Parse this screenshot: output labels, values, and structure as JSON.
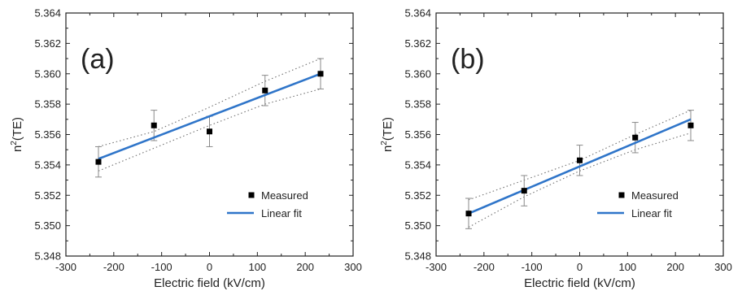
{
  "colors": {
    "axis": "#222222",
    "marker": "#000000",
    "fit": "#2f75c9",
    "confidence": "#707070",
    "errorbar": "#8a8a8a",
    "background": "#ffffff"
  },
  "chart_data": [
    {
      "type": "scatter",
      "panel_label": "(a)",
      "xlabel": "Electric field (kV/cm)",
      "ylabel": "n2(TE)",
      "ylabel_base": "n",
      "ylabel_sup": "2",
      "ylabel_rest": "(TE)",
      "xlim": [
        -300,
        300
      ],
      "ylim": [
        5.348,
        5.364
      ],
      "x_ticks": [
        -300,
        -200,
        -100,
        0,
        100,
        200,
        300
      ],
      "x_tick_labels": [
        "-300",
        "-200",
        "-100",
        "0",
        "100",
        "200",
        "300"
      ],
      "y_ticks": [
        5.348,
        5.35,
        5.352,
        5.354,
        5.356,
        5.358,
        5.36,
        5.362,
        5.364
      ],
      "y_tick_labels": [
        "5.348",
        "5.350",
        "5.352",
        "5.354",
        "5.356",
        "5.358",
        "5.360",
        "5.362",
        "5.364"
      ],
      "grid": false,
      "legend_position": "bottom-right",
      "series": [
        {
          "name": "Measured",
          "kind": "points",
          "x": [
            -232,
            -116,
            0,
            116,
            232
          ],
          "y": [
            5.3542,
            5.3566,
            5.3562,
            5.3589,
            5.36
          ],
          "yerr": [
            0.001,
            0.001,
            0.001,
            0.001,
            0.001
          ]
        },
        {
          "name": "Linear fit",
          "kind": "line",
          "x": [
            -232,
            232
          ],
          "y": [
            5.3544,
            5.36
          ]
        },
        {
          "kind": "confidence-upper",
          "x": [
            -232,
            -116,
            0,
            116,
            232
          ],
          "y": [
            5.3552,
            5.3562,
            5.3578,
            5.3595,
            5.361
          ]
        },
        {
          "kind": "confidence-lower",
          "x": [
            -232,
            -116,
            0,
            116,
            232
          ],
          "y": [
            5.3536,
            5.3551,
            5.3566,
            5.358,
            5.359
          ]
        }
      ]
    },
    {
      "type": "scatter",
      "panel_label": "(b)",
      "xlabel": "Electric field (kV/cm)",
      "ylabel": "n2(TE)",
      "ylabel_base": "n",
      "ylabel_sup": "2",
      "ylabel_rest": "(TE)",
      "xlim": [
        -300,
        300
      ],
      "ylim": [
        5.348,
        5.364
      ],
      "x_ticks": [
        -300,
        -200,
        -100,
        0,
        100,
        200,
        300
      ],
      "x_tick_labels": [
        "-300",
        "-200",
        "-100",
        "0",
        "100",
        "200",
        "300"
      ],
      "y_ticks": [
        5.348,
        5.35,
        5.352,
        5.354,
        5.356,
        5.358,
        5.36,
        5.362,
        5.364
      ],
      "y_tick_labels": [
        "5.348",
        "5.350",
        "5.352",
        "5.354",
        "5.356",
        "5.358",
        "5.360",
        "5.362",
        "5.364"
      ],
      "grid": false,
      "legend_position": "bottom-right",
      "series": [
        {
          "name": "Measured",
          "kind": "points",
          "x": [
            -232,
            -116,
            0,
            116,
            232
          ],
          "y": [
            5.3508,
            5.3523,
            5.3543,
            5.3558,
            5.3566
          ],
          "yerr": [
            0.001,
            0.001,
            0.001,
            0.001,
            0.001
          ]
        },
        {
          "name": "Linear fit",
          "kind": "line",
          "x": [
            -232,
            232
          ],
          "y": [
            5.3508,
            5.357
          ]
        },
        {
          "kind": "confidence-upper",
          "x": [
            -232,
            -116,
            0,
            116,
            232
          ],
          "y": [
            5.3517,
            5.353,
            5.3543,
            5.356,
            5.3576
          ]
        },
        {
          "kind": "confidence-lower",
          "x": [
            -232,
            -116,
            0,
            116,
            232
          ],
          "y": [
            5.3499,
            5.3519,
            5.3536,
            5.355,
            5.3561
          ]
        }
      ]
    }
  ]
}
